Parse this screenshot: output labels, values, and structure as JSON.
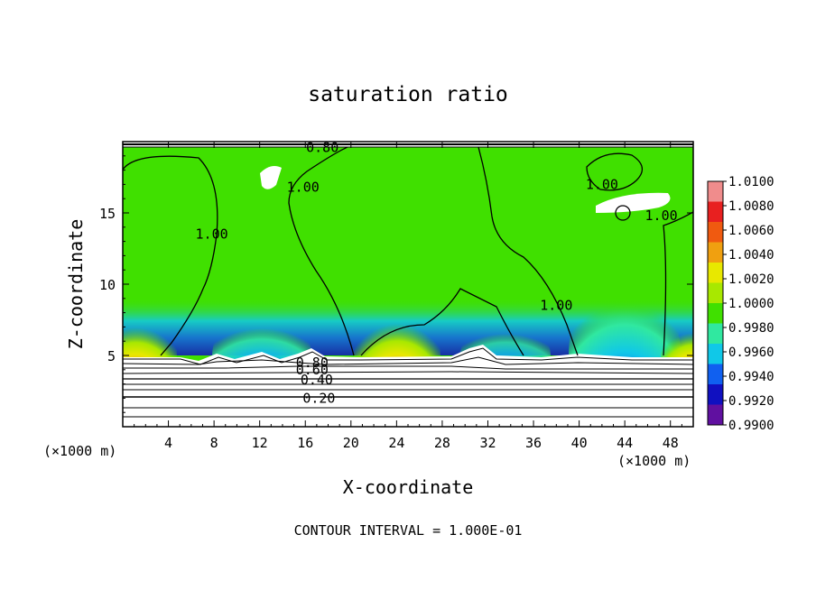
{
  "chart_data": {
    "type": "heatmap",
    "title": "saturation ratio",
    "xlabel": "X-coordinate",
    "ylabel": "Z-coordinate",
    "x_unit_left": "(×1000 m)",
    "x_unit_right": "(×1000 m)",
    "xlim": [
      0,
      50
    ],
    "ylim": [
      0,
      20
    ],
    "x_ticks": [
      4,
      8,
      12,
      16,
      20,
      24,
      28,
      32,
      36,
      40,
      44,
      48
    ],
    "y_ticks": [
      5,
      10,
      15
    ],
    "footer": "CONTOUR INTERVAL = 1.000E-01",
    "colorbar": {
      "labels": [
        "1.0100",
        "1.0080",
        "1.0060",
        "1.0040",
        "1.0020",
        "1.0000",
        "0.9980",
        "0.9960",
        "0.9940",
        "0.9920",
        "0.9900"
      ],
      "colors": [
        "#f08c8c",
        "#e82020",
        "#f05a10",
        "#f0a010",
        "#e8e800",
        "#a8e800",
        "#40e000",
        "#30e8a0",
        "#10c8e8",
        "#1060f0",
        "#1010c0",
        "#6010a0"
      ]
    },
    "contour_labels": [
      {
        "text": "0.80",
        "x": 17.5,
        "y": 19.6
      },
      {
        "text": "1.00",
        "x": 15.8,
        "y": 16.8
      },
      {
        "text": "1.00",
        "x": 7.8,
        "y": 13.5
      },
      {
        "text": "1.00",
        "x": 42.0,
        "y": 17.0
      },
      {
        "text": "1.00",
        "x": 47.2,
        "y": 14.8
      },
      {
        "text": "1.00",
        "x": 38.0,
        "y": 8.5
      },
      {
        "text": "0.80",
        "x": 16.6,
        "y": 4.5
      },
      {
        "text": "0.60",
        "x": 16.6,
        "y": 4.0
      },
      {
        "text": "0.40",
        "x": 17.0,
        "y": 3.3
      },
      {
        "text": "0.20",
        "x": 17.2,
        "y": 2.0
      }
    ]
  }
}
